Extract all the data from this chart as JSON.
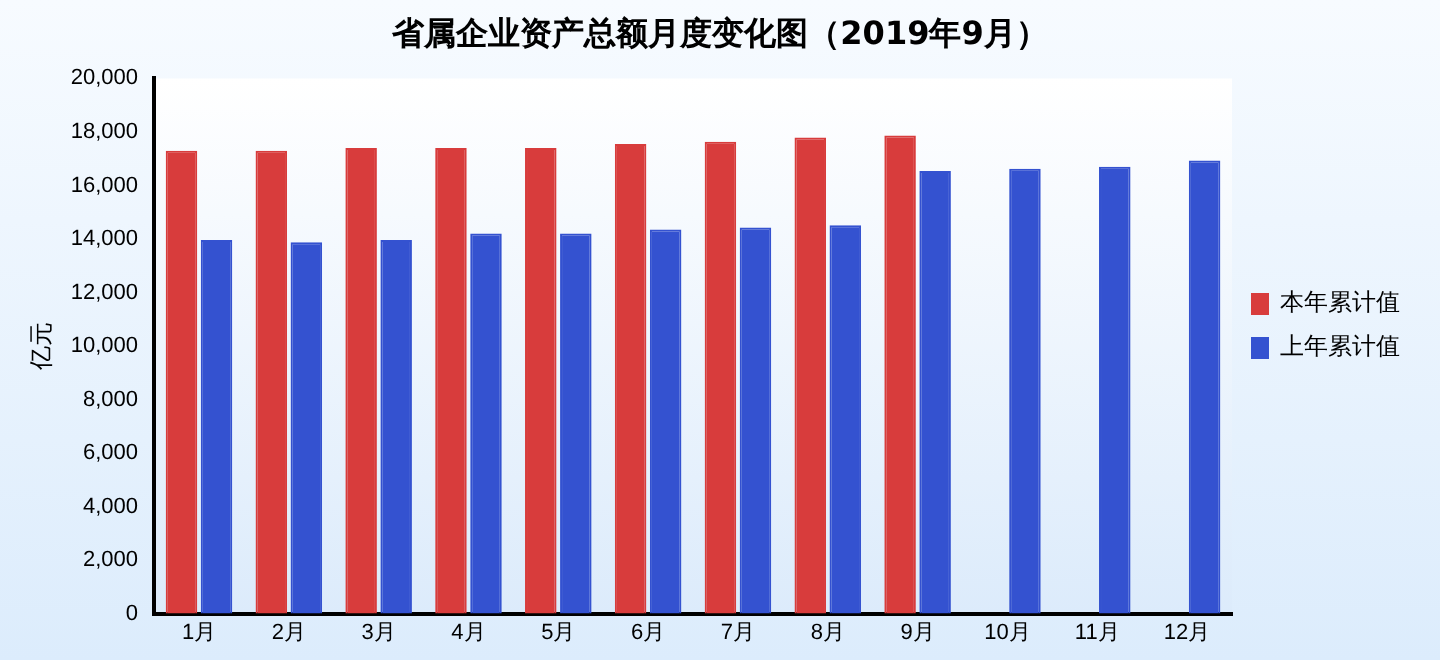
{
  "chart_data": {
    "type": "bar",
    "title": "省属企业资产总额月度变化图（2019年9月）",
    "ylabel": "亿元",
    "categories": [
      "1月",
      "2月",
      "3月",
      "4月",
      "5月",
      "6月",
      "7月",
      "8月",
      "9月",
      "10月",
      "11月",
      "12月"
    ],
    "series": [
      {
        "name": "本年累计值",
        "color": "#d83c3c",
        "values": [
          17300,
          17300,
          17400,
          17400,
          17400,
          17550,
          17630,
          17790,
          17870,
          null,
          null,
          null
        ]
      },
      {
        "name": "上年累计值",
        "color": "#3452d0",
        "values": [
          13960,
          13880,
          13960,
          14200,
          14200,
          14350,
          14430,
          14510,
          16540,
          16620,
          16700,
          16930
        ]
      }
    ],
    "ylim": [
      0,
      20000
    ],
    "yticks": [
      {
        "value": 0,
        "label": "0"
      },
      {
        "value": 2000,
        "label": "2,000"
      },
      {
        "value": 4000,
        "label": "4,000"
      },
      {
        "value": 6000,
        "label": "6,000"
      },
      {
        "value": 8000,
        "label": "8,000"
      },
      {
        "value": 10000,
        "label": "10,000"
      },
      {
        "value": 12000,
        "label": "12,000"
      },
      {
        "value": 14000,
        "label": "14,000"
      },
      {
        "value": 16000,
        "label": "16,000"
      },
      {
        "value": 18000,
        "label": "18,000"
      },
      {
        "value": 20000,
        "label": "20,000"
      }
    ],
    "grid": false,
    "legend": "right"
  }
}
